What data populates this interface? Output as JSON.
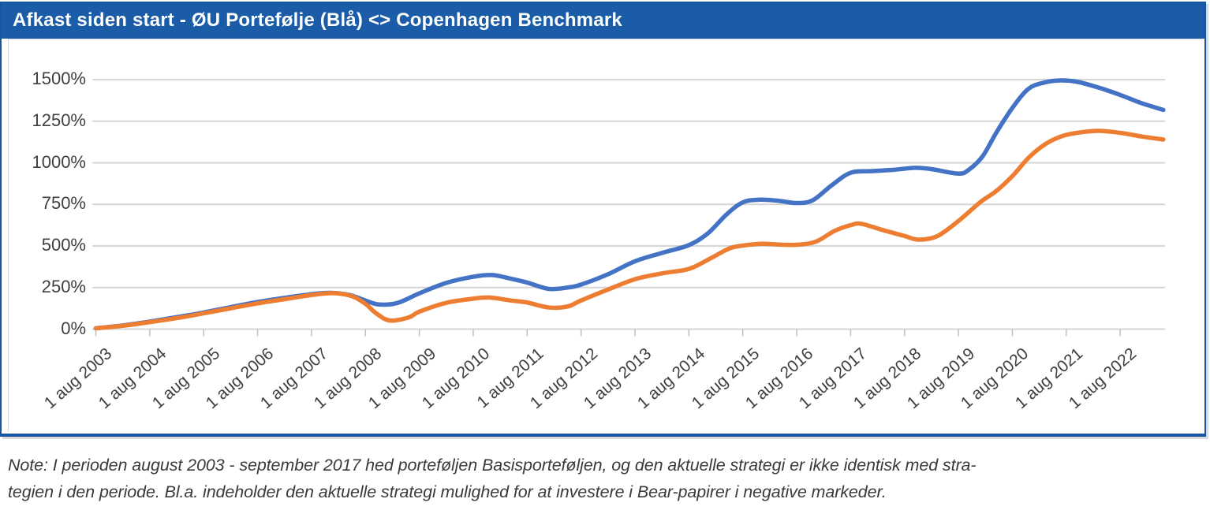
{
  "header": {
    "title": "Afkast siden start - ØU Portefølje (Blå) <> Copenhagen Benchmark"
  },
  "note": {
    "lines": [
      "Note: I perioden august 2003 - september 2017 hed porteføljen Basisporteføljen, og den aktuelle strategi er ikke identisk med stra-",
      "tegien i den periode. Bl.a. indeholder den aktuelle strategi mulighed for at investere i Bear-papirer i negative markeder."
    ]
  },
  "colors": {
    "header_bg": "#1A5CA8",
    "box_border": "#1656A0",
    "gridline": "#D6D6D6",
    "tick": "#BFBFBF",
    "axis_text": "#3F3F3F",
    "series_blue": "#4472C4",
    "series_orange": "#ED7D31"
  },
  "chart_data": {
    "type": "line",
    "title": "Afkast siden start - ØU Portefølje (Blå) <> Copenhagen Benchmark",
    "grid": true,
    "legend": "none",
    "y_axis": {
      "unit": "%",
      "min": 0,
      "max": 1500,
      "step": 250,
      "tick_labels": [
        "0%",
        "250%",
        "500%",
        "750%",
        "1000%",
        "1250%",
        "1500%"
      ]
    },
    "x_axis": {
      "tick_labels": [
        "1 aug 2003",
        "1 aug 2004",
        "1 aug 2005",
        "1 aug 2006",
        "1 aug 2007",
        "1 aug 2008",
        "1 aug 2009",
        "1 aug 2010",
        "1 aug 2011",
        "1 aug 2012",
        "1 aug 2013",
        "1 aug 2014",
        "1 aug 2015",
        "1 aug 2016",
        "1 aug 2017",
        "1 aug 2018",
        "1 aug 2019",
        "1 aug 2020",
        "1 aug 2021",
        "1 aug 2022"
      ],
      "note": "t = years since 1 aug 2003; data extends ~0.8 years past last tick"
    },
    "series": [
      {
        "name": "ØU Portefølje (Blå)",
        "color": "#4472C4",
        "points": [
          [
            0,
            5
          ],
          [
            0.5,
            22
          ],
          [
            1,
            45
          ],
          [
            1.5,
            72
          ],
          [
            2,
            100
          ],
          [
            2.5,
            132
          ],
          [
            3,
            163
          ],
          [
            3.5,
            188
          ],
          [
            4,
            210
          ],
          [
            4.35,
            218
          ],
          [
            4.7,
            205
          ],
          [
            5,
            172
          ],
          [
            5.25,
            148
          ],
          [
            5.6,
            158
          ],
          [
            6,
            215
          ],
          [
            6.5,
            278
          ],
          [
            7,
            315
          ],
          [
            7.35,
            325
          ],
          [
            7.7,
            303
          ],
          [
            8,
            280
          ],
          [
            8.4,
            242
          ],
          [
            8.75,
            250
          ],
          [
            9,
            268
          ],
          [
            9.5,
            330
          ],
          [
            10,
            408
          ],
          [
            10.5,
            458
          ],
          [
            11,
            505
          ],
          [
            11.35,
            575
          ],
          [
            11.7,
            690
          ],
          [
            12,
            762
          ],
          [
            12.3,
            778
          ],
          [
            12.65,
            772
          ],
          [
            13,
            758
          ],
          [
            13.3,
            775
          ],
          [
            13.65,
            865
          ],
          [
            14,
            940
          ],
          [
            14.4,
            950
          ],
          [
            14.8,
            958
          ],
          [
            15.2,
            970
          ],
          [
            15.5,
            962
          ],
          [
            16,
            935
          ],
          [
            16.2,
            960
          ],
          [
            16.45,
            1040
          ],
          [
            16.7,
            1180
          ],
          [
            17,
            1330
          ],
          [
            17.3,
            1445
          ],
          [
            17.6,
            1483
          ],
          [
            17.9,
            1495
          ],
          [
            18.2,
            1487
          ],
          [
            18.6,
            1452
          ],
          [
            19,
            1408
          ],
          [
            19.4,
            1358
          ],
          [
            19.8,
            1318
          ]
        ]
      },
      {
        "name": "Copenhagen Benchmark",
        "color": "#ED7D31",
        "points": [
          [
            0,
            5
          ],
          [
            0.5,
            20
          ],
          [
            1,
            42
          ],
          [
            1.5,
            66
          ],
          [
            2,
            95
          ],
          [
            2.5,
            125
          ],
          [
            3,
            155
          ],
          [
            3.5,
            180
          ],
          [
            4,
            205
          ],
          [
            4.4,
            216
          ],
          [
            4.75,
            198
          ],
          [
            5,
            152
          ],
          [
            5.2,
            95
          ],
          [
            5.45,
            52
          ],
          [
            5.8,
            70
          ],
          [
            6,
            105
          ],
          [
            6.5,
            158
          ],
          [
            7,
            183
          ],
          [
            7.3,
            190
          ],
          [
            7.7,
            172
          ],
          [
            8,
            160
          ],
          [
            8.4,
            130
          ],
          [
            8.75,
            136
          ],
          [
            9,
            172
          ],
          [
            9.5,
            238
          ],
          [
            10,
            300
          ],
          [
            10.5,
            335
          ],
          [
            11,
            362
          ],
          [
            11.4,
            425
          ],
          [
            11.75,
            485
          ],
          [
            12,
            502
          ],
          [
            12.35,
            513
          ],
          [
            12.7,
            508
          ],
          [
            13,
            507
          ],
          [
            13.35,
            525
          ],
          [
            13.7,
            590
          ],
          [
            14,
            625
          ],
          [
            14.2,
            633
          ],
          [
            14.6,
            595
          ],
          [
            15,
            560
          ],
          [
            15.25,
            538
          ],
          [
            15.6,
            558
          ],
          [
            16,
            650
          ],
          [
            16.4,
            762
          ],
          [
            16.7,
            830
          ],
          [
            17,
            920
          ],
          [
            17.3,
            1030
          ],
          [
            17.6,
            1110
          ],
          [
            17.9,
            1158
          ],
          [
            18.2,
            1180
          ],
          [
            18.6,
            1192
          ],
          [
            19,
            1180
          ],
          [
            19.4,
            1158
          ],
          [
            19.8,
            1140
          ]
        ]
      }
    ]
  }
}
